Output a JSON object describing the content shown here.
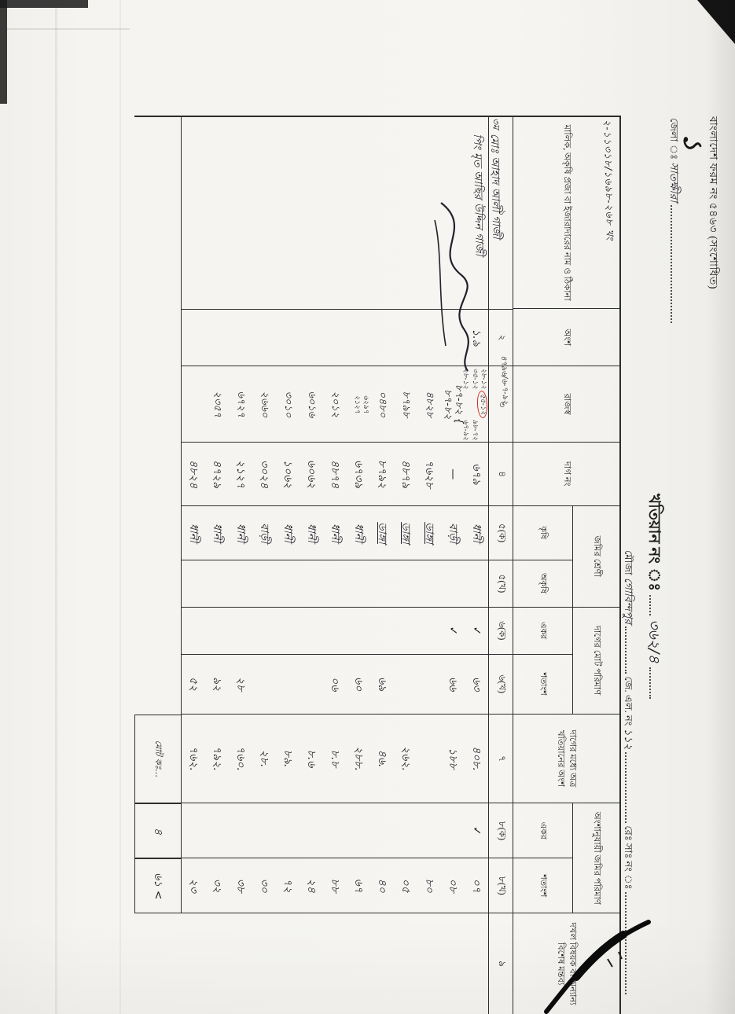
{
  "page": {
    "form_line": "বাংলাদেশ ফরম নং ৫৪৬৩",
    "form_line_suffix": "(সংশোধিত)",
    "page_mark": "১",
    "district_label": "জেলা ঃ",
    "district_value": "সাতক্ষীরা",
    "khatian_label": "খতিয়ান নং ঃ",
    "khatian_no": "৩৬২/৪",
    "thana_scribble": "২-১১৩১৮/১৬৯৮-২৬৮ খং",
    "mouza_label": "মৌজা",
    "mouza_value": "গোবিন্দপুর",
    "jl_label": "জে. এল. নং",
    "jl_no": "১১২",
    "resa_label": "রেঃ সাঃ নং ঃ",
    "case_note": "৪৭৯৬/৬-৭-৯২",
    "owner_mark": "৩ম"
  },
  "table": {
    "columns": {
      "owner": "মালিক, অকৃষি প্রজা বা ইজারাদারের নাম ও ঠিকানা",
      "share": "অংশ",
      "revenue": "রাজস্ব",
      "dag": "দাগ নং",
      "land_class": "জমির শ্রেণী",
      "agri": "কৃষি",
      "non_agri": "অকৃষি",
      "plot_total": "দাগের মোট পরিমাণ",
      "acre": "একর",
      "decimal": "শতাংশ",
      "khatian_part": "দাগের মধ্যে অত্র খতিয়ানের অংশ",
      "share_area": "অংশানুযায়ী জমির পরিমাণ",
      "remarks": "দখল বিষয়ক বা অন্যান্য বিশেষ মন্তব্য"
    },
    "col_numbers": [
      "১",
      "২",
      "৩",
      "৪",
      "৫(ক)",
      "৫(খ)",
      "৬(ক)",
      "৬(খ)",
      "৭",
      "৮(ক)",
      "৮(খ)",
      "৯"
    ],
    "owner_entry": {
      "lines": [
        "মোঃ আহাদ আলী গাজী",
        "পিং মৃত আছির উদ্দিন গাজী"
      ]
    },
    "rows": [
      {
        "share": "১.৯",
        "rev_pre": "২৮-১২ ৩৫-১২\n২৮-১২ ",
        "rev_circle": "৫৫-১২",
        "rev_post": "\n৯৮-৭২ ৬৭-৯২",
        "rev_tiny": true,
        "dag": "৬৭৯",
        "cls": "ধানী",
        "t_acre": "✓",
        "t_dec": "৬৩",
        "kh": "৪০৮.",
        "s_acre": "✓",
        "s_dec": "০৭",
        "rem": ""
      },
      {
        "share": "",
        "rev_pre": "৮৭-৮২ {\n৮৭-৮২",
        "dag": "—",
        "cls": "বাড়ী",
        "t_acre": "✓",
        "t_dec": "৬৬",
        "kh": "১৮৮",
        "s_dec": "০৮"
      },
      {
        "rev_pre": "৪৮২৮",
        "dag": "৭৬২৮",
        "cls": "ডাঙ্গা",
        "cls_u": true,
        "s_dec": "৮০"
      },
      {
        "rev_pre": "৮৭৯৮",
        "dag": "৪৮৭৯",
        "cls": "ডাঙ্গা",
        "cls_u": true,
        "kh": "২৬২.",
        "s_dec": "০৫"
      },
      {
        "rev_pre": "০৪৮০",
        "dag": "৮৭৯২",
        "cls": "ডাঙ্গা",
        "cls_u": true,
        "t_dec": "৬৯",
        "kh": "৪৬.",
        "s_dec": "৪০"
      },
      {
        "rev_pre": "৬২৯৭\n২১২৭",
        "rev_tiny": true,
        "dag": "৬৭৩৯",
        "cls": "ধানী",
        "t_dec": "৬০",
        "kh": "২৮৮.",
        "s_dec": "৬৭"
      },
      {
        "rev_pre": "২০১২",
        "dag": "৪৮৭৪",
        "cls": "ধানী",
        "t_dec": "০৬",
        "kh": "৮.৮",
        "s_dec": "৮৮"
      },
      {
        "rev_pre": "৬০১৬",
        "dag": "৬০৬২",
        "cls": "ধানী",
        "kh": "৮.৬",
        "s_dec": "২৪"
      },
      {
        "rev_pre": "৩০১০",
        "dag": "১০৬২",
        "cls": "ধানী",
        "kh": "৮৯.",
        "s_dec": "৭২"
      },
      {
        "rev_pre": "২৬৬০",
        "dag": "৩০২৪",
        "cls": "বাড়ী",
        "kh": "২৮.",
        "s_dec": "৩০"
      },
      {
        "rev_pre": "৬৭২৭",
        "dag": "২১২৭",
        "cls": "ধানী",
        "t_dec": "২৮",
        "kh": "৭৬০.",
        "s_dec": "৩৮"
      },
      {
        "rev_pre": "২৩৫৭",
        "dag": "৪৭২৯",
        "cls": "ধানী",
        "t_dec": "৯২",
        "kh": "৭৯২.",
        "s_dec": "৩২"
      },
      {
        "rev_pre": "",
        "dag": "৪৮২৪",
        "cls": "ধানী",
        "t_dec": "৫২",
        "kh": "৭৬২.",
        "s_dec": "২৩"
      }
    ],
    "totals": {
      "label": "মোট কঃ…",
      "acre": "৪",
      "decimal": "৬১ <"
    }
  }
}
